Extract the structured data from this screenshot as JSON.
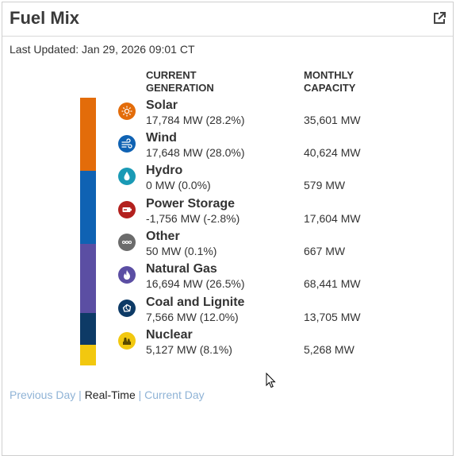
{
  "widget": {
    "title": "Fuel Mix",
    "last_updated": "Last Updated: Jan 29, 2026 09:01 CT",
    "col_current": "CURRENT GENERATION",
    "col_capacity": "MONTHLY CAPACITY",
    "external_icon": "external-link-icon"
  },
  "sources": [
    {
      "name": "Solar",
      "gen": "17,784 MW (28.2%)",
      "capacity": "35,601 MW",
      "share": 28.2,
      "color": "#e36c0a",
      "icon": "sun-icon"
    },
    {
      "name": "Wind",
      "gen": "17,648 MW (28.0%)",
      "capacity": "40,624 MW",
      "share": 28.0,
      "color": "#0f62b3",
      "icon": "wind-icon"
    },
    {
      "name": "Hydro",
      "gen": "0 MW (0.0%)",
      "capacity": "579 MW",
      "share": 0.0,
      "color": "#1a9ab5",
      "icon": "water-drop-icon"
    },
    {
      "name": "Power Storage",
      "gen": "-1,756 MW (-2.8%)",
      "capacity": "17,604 MW",
      "share": -2.8,
      "color": "#b3211e",
      "icon": "battery-icon"
    },
    {
      "name": "Other",
      "gen": "50 MW (0.1%)",
      "capacity": "667 MW",
      "share": 0.1,
      "color": "#6b6b6b",
      "icon": "dots-icon"
    },
    {
      "name": "Natural Gas",
      "gen": "16,694 MW (26.5%)",
      "capacity": "68,441 MW",
      "share": 26.5,
      "color": "#5b4ea3",
      "icon": "flame-icon"
    },
    {
      "name": "Coal and Lignite",
      "gen": "7,566 MW (12.0%)",
      "capacity": "13,705 MW",
      "share": 12.0,
      "color": "#0d3a66",
      "icon": "coal-icon"
    },
    {
      "name": "Nuclear",
      "gen": "5,127 MW (8.1%)",
      "capacity": "5,268 MW",
      "share": 8.1,
      "color": "#f2c80f",
      "icon": "nuclear-plant-icon"
    }
  ],
  "footer": {
    "previous_day": "Previous Day",
    "real_time": "Real-Time",
    "current_day": "Current Day",
    "separator": "|"
  }
}
